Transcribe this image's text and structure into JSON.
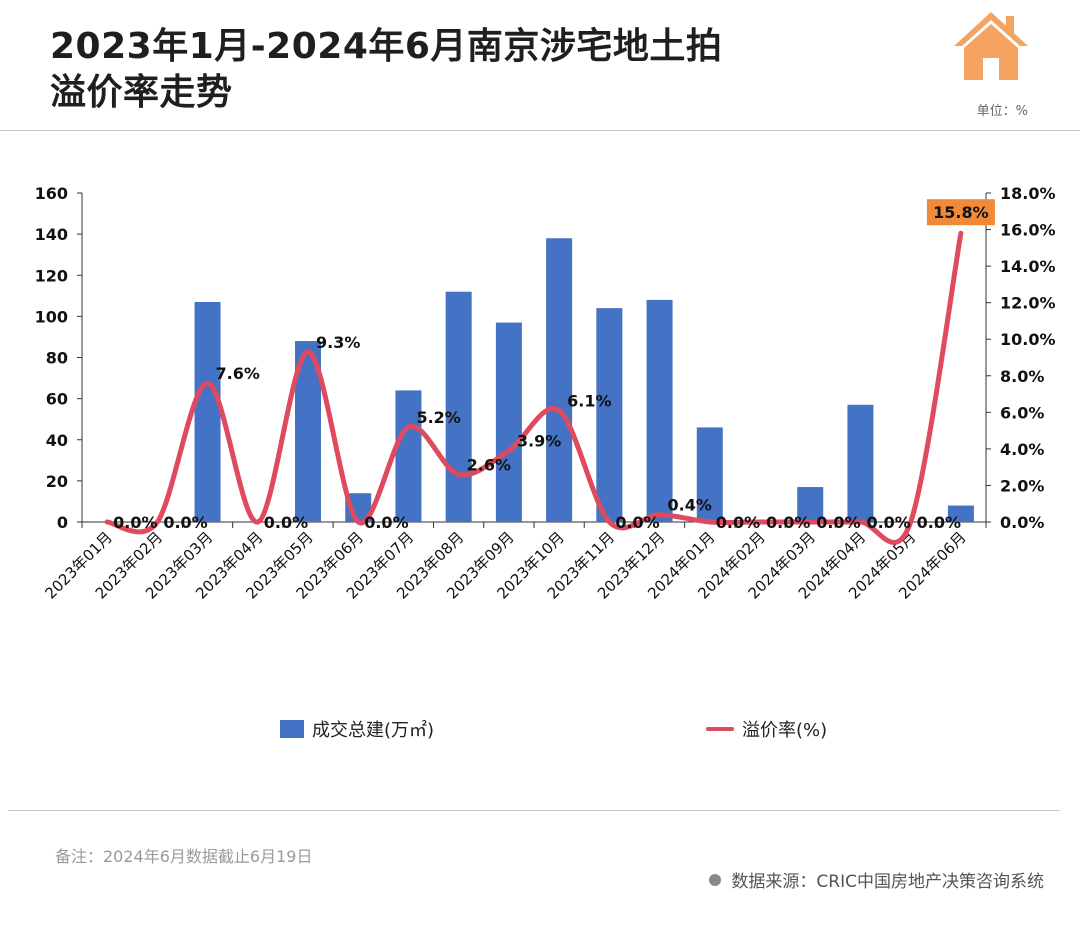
{
  "header": {
    "title_line1": "2023年1月-2024年6月南京涉宅地土拍",
    "title_line2": "溢价率走势",
    "unit": "单位：%"
  },
  "icons": {
    "logo": "house-icon"
  },
  "colors": {
    "bar": "#4472C4",
    "line": "#E04A5F",
    "highlight": "#F08A38"
  },
  "legend": {
    "bar_label": "成交总建(万㎡)",
    "line_label": "溢价率(%)"
  },
  "footer": {
    "note": "备注：2024年6月数据截止6月19日",
    "source": "数据来源：CRIC中国房地产决策咨询系统"
  },
  "chart_data": {
    "type": "bar",
    "categories": [
      "2023年01月",
      "2023年02月",
      "2023年03月",
      "2023年04月",
      "2023年05月",
      "2023年06月",
      "2023年07月",
      "2023年08月",
      "2023年09月",
      "2023年10月",
      "2023年11月",
      "2023年12月",
      "2024年01月",
      "2024年02月",
      "2024年03月",
      "2024年04月",
      "2024年05月",
      "2024年06月"
    ],
    "series": [
      {
        "name": "成交总建(万㎡)",
        "type": "bar",
        "axis": "left",
        "values": [
          0,
          0,
          107,
          0,
          88,
          14,
          64,
          112,
          97,
          138,
          104,
          108,
          46,
          0,
          17,
          57,
          0,
          8
        ]
      },
      {
        "name": "溢价率(%)",
        "type": "line",
        "axis": "right",
        "values": [
          0.0,
          0.0,
          7.6,
          0.0,
          9.3,
          0.0,
          5.2,
          2.6,
          3.9,
          6.1,
          0.0,
          0.4,
          0.0,
          0.0,
          0.0,
          0.0,
          0.0,
          15.8
        ],
        "labels": [
          "0.0%",
          "0.0%",
          "7.6%",
          "0.0%",
          "9.3%",
          "0.0%",
          "5.2%",
          "2.6%",
          "3.9%",
          "6.1%",
          "0.0%",
          "0.4%",
          "0.0%",
          "0.0%",
          "0.0%",
          "0.0%",
          "0.0%",
          "15.8%"
        ]
      }
    ],
    "y_left": {
      "range": [
        0,
        160
      ],
      "ticks": [
        "0",
        "20",
        "40",
        "60",
        "80",
        "100",
        "120",
        "140",
        "160"
      ]
    },
    "y_right": {
      "range": [
        0,
        18
      ],
      "ticks": [
        "0.0%",
        "2.0%",
        "4.0%",
        "6.0%",
        "8.0%",
        "10.0%",
        "12.0%",
        "14.0%",
        "16.0%",
        "18.0%"
      ]
    },
    "highlight_index": 17,
    "grid": false,
    "legend_position": "bottom"
  }
}
